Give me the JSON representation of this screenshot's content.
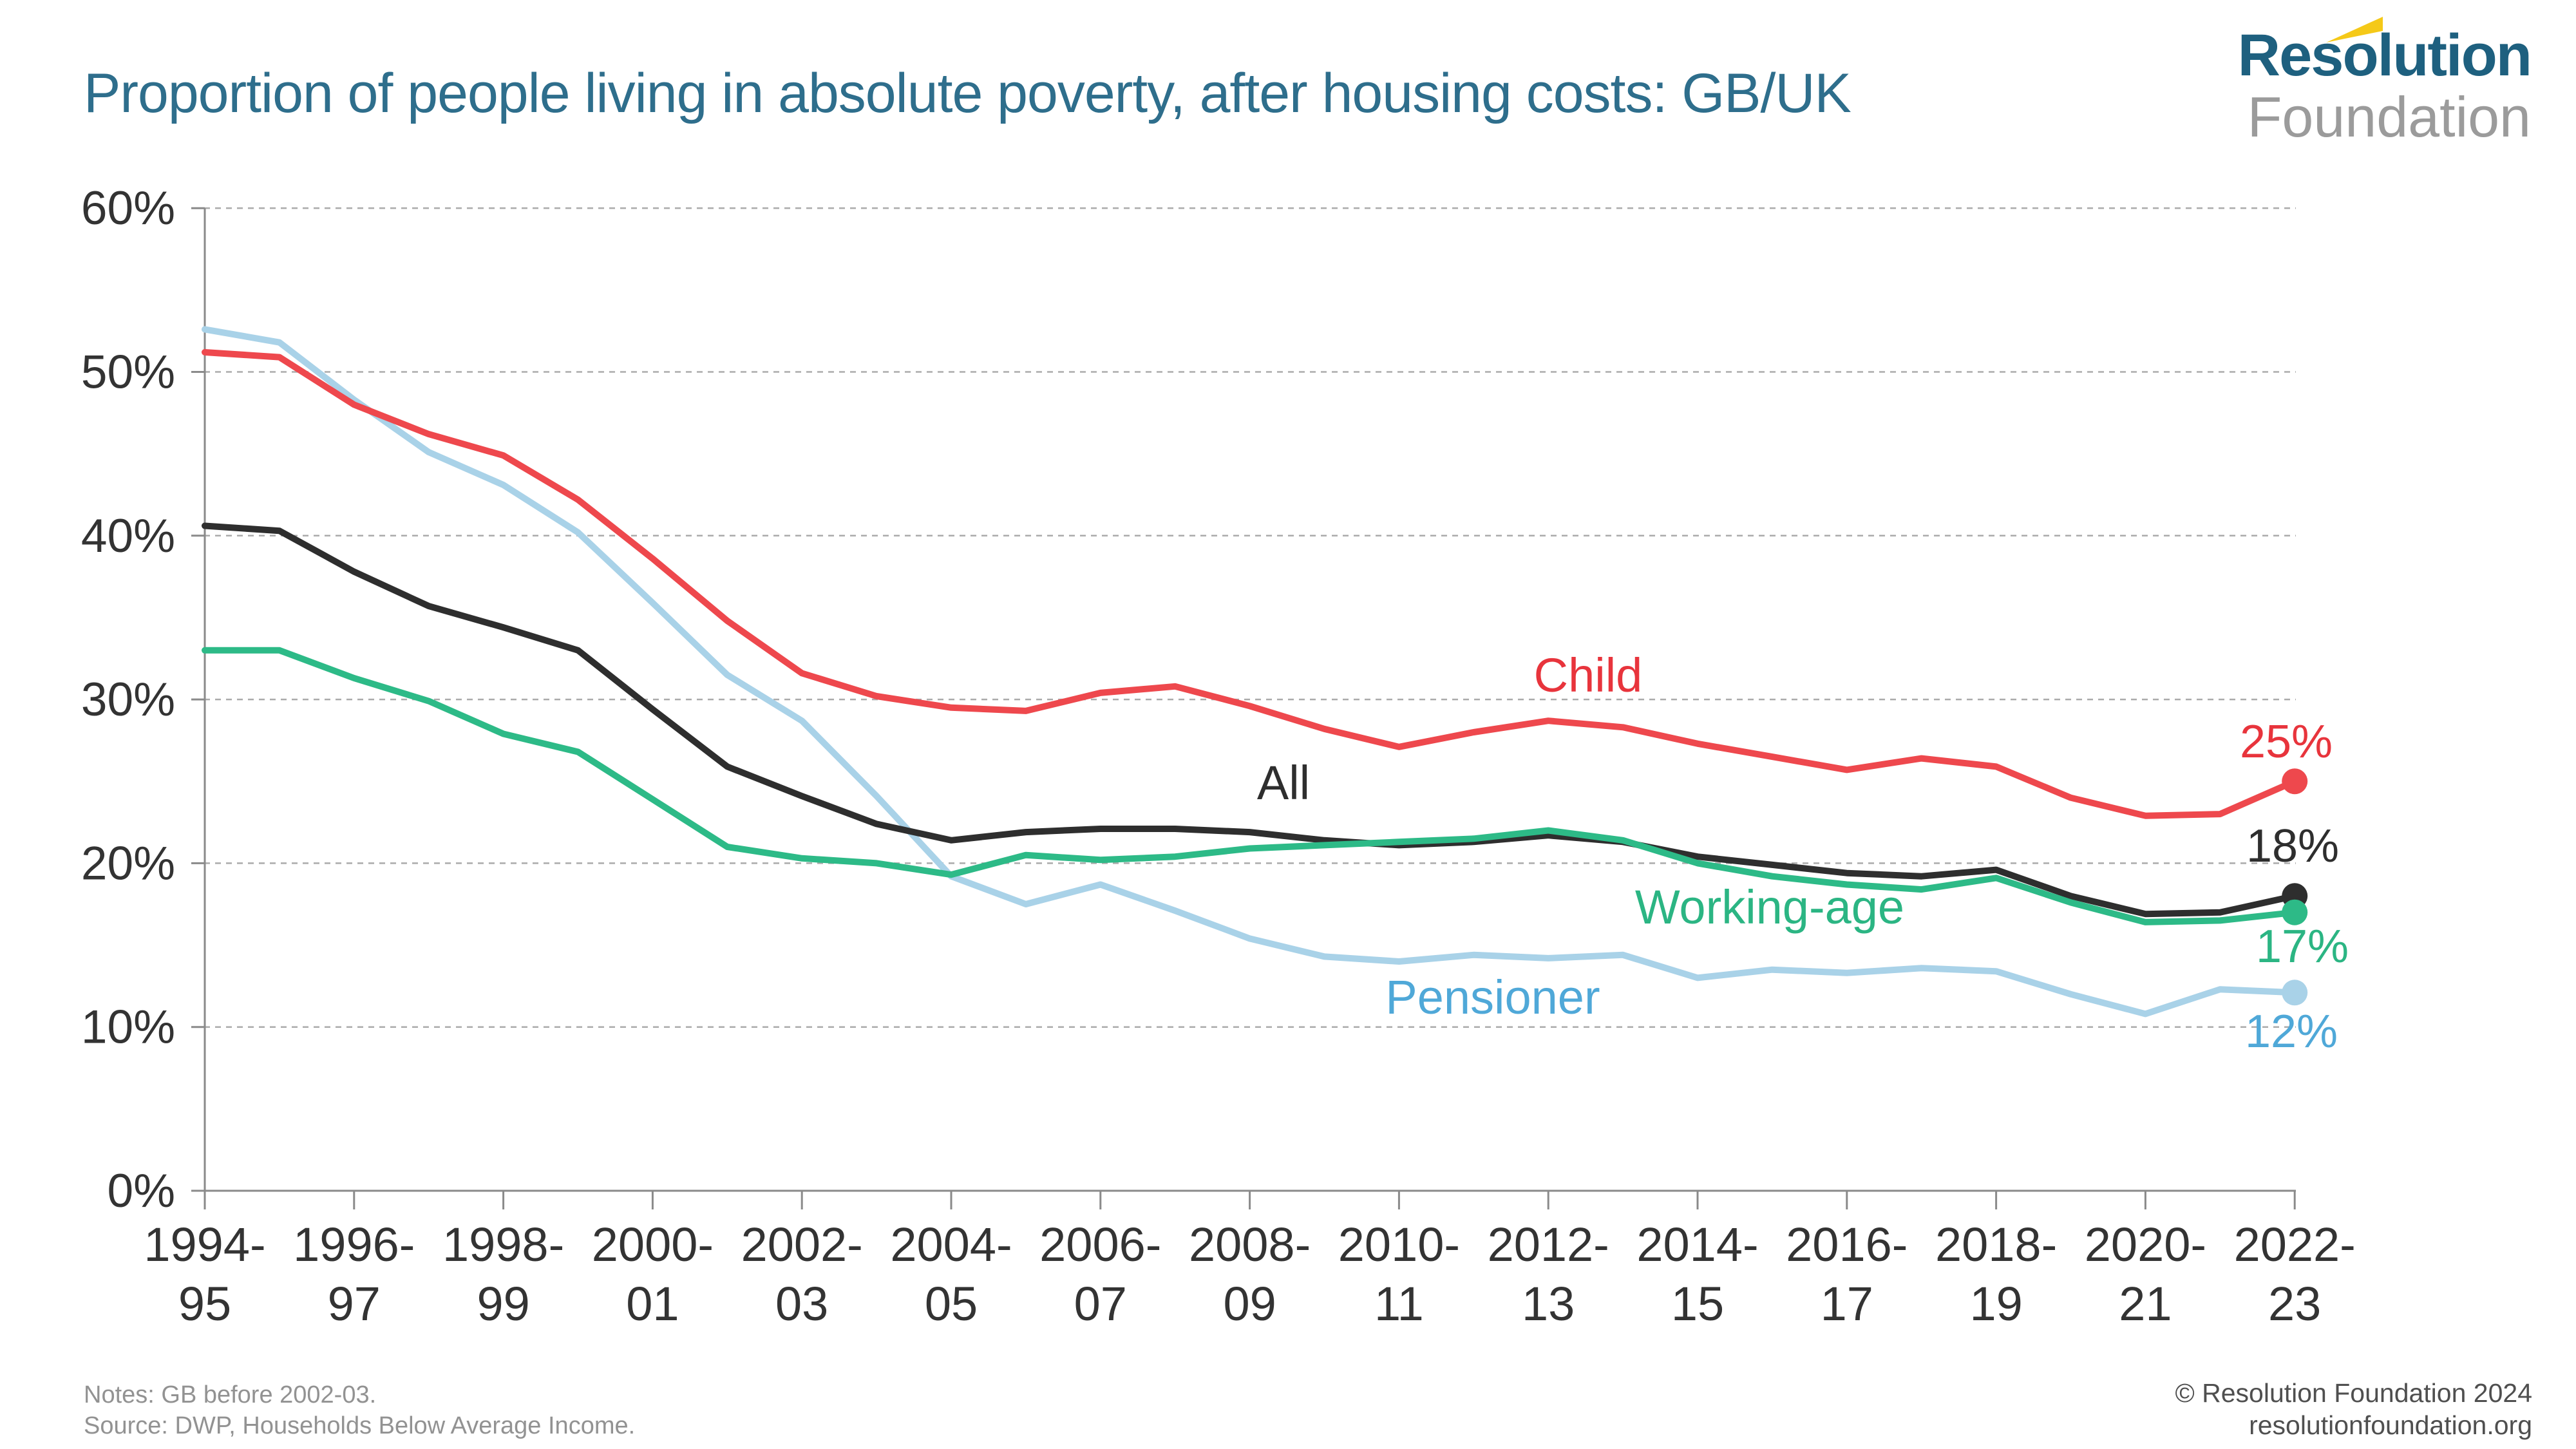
{
  "header": {
    "title": "Proportion of people living in absolute poverty, after housing costs: GB/UK",
    "logo": {
      "line1": "Resolution",
      "line2": "Foundation"
    }
  },
  "chart_data": {
    "type": "line",
    "x": [
      "1994-95",
      "1995-96",
      "1996-97",
      "1997-98",
      "1998-99",
      "1999-00",
      "2000-01",
      "2001-02",
      "2002-03",
      "2003-04",
      "2004-05",
      "2005-06",
      "2006-07",
      "2007-08",
      "2008-09",
      "2009-10",
      "2010-11",
      "2011-12",
      "2012-13",
      "2013-14",
      "2014-15",
      "2015-16",
      "2016-17",
      "2017-18",
      "2018-19",
      "2019-20",
      "2020-21",
      "2021-22",
      "2022-23"
    ],
    "x_tick_every": 2,
    "ylim": [
      0,
      60
    ],
    "ytick_step": 10,
    "ytick_labels": [
      "0%",
      "10%",
      "20%",
      "30%",
      "40%",
      "50%",
      "60%"
    ],
    "grid": "horizontal dashed",
    "legend": "inline series labels",
    "series": [
      {
        "name": "Child",
        "color": "#ee484d",
        "label_color": "#e8343c",
        "end_label": "25%",
        "values": [
          51.2,
          50.9,
          48.0,
          46.2,
          44.9,
          42.2,
          38.6,
          34.8,
          31.6,
          30.2,
          29.5,
          29.3,
          30.4,
          30.8,
          29.6,
          28.2,
          27.1,
          28.0,
          28.7,
          28.3,
          27.3,
          26.5,
          25.7,
          26.4,
          25.9,
          24.0,
          22.9,
          23.0,
          25.0
        ]
      },
      {
        "name": "All",
        "color": "#2e2e2e",
        "label_color": "#2e2e2e",
        "end_label": "18%",
        "values": [
          40.6,
          40.3,
          37.8,
          35.7,
          34.4,
          33.0,
          29.4,
          25.9,
          24.1,
          22.4,
          21.4,
          21.9,
          22.1,
          22.1,
          21.9,
          21.4,
          21.1,
          21.3,
          21.7,
          21.3,
          20.4,
          19.9,
          19.4,
          19.2,
          19.6,
          18.0,
          16.9,
          17.0,
          18.0
        ]
      },
      {
        "name": "Working-age",
        "color": "#2dba87",
        "label_color": "#2bb583",
        "end_label": "17%",
        "values": [
          33.0,
          33.0,
          31.3,
          29.9,
          27.9,
          26.8,
          23.9,
          21.0,
          20.3,
          20.0,
          19.3,
          20.5,
          20.2,
          20.4,
          20.9,
          21.1,
          21.3,
          21.5,
          22.0,
          21.4,
          20.0,
          19.2,
          18.7,
          18.4,
          19.1,
          17.6,
          16.4,
          16.5,
          17.0
        ]
      },
      {
        "name": "Pensioner",
        "color": "#a9d2e8",
        "label_color": "#4fa8d8",
        "end_label": "12%",
        "values": [
          52.6,
          51.8,
          48.3,
          45.1,
          43.1,
          40.2,
          35.9,
          31.5,
          28.7,
          24.1,
          19.2,
          17.5,
          18.7,
          17.1,
          15.4,
          14.3,
          14.0,
          14.4,
          14.2,
          14.4,
          13.0,
          13.5,
          13.3,
          13.6,
          13.4,
          12.0,
          10.8,
          12.3,
          12.1
        ]
      }
    ]
  },
  "notes": {
    "line1": "Notes: GB before 2002-03.",
    "line2": "Source: DWP, Households Below Average Income."
  },
  "footer": {
    "copyright": "© Resolution Foundation 2024",
    "website": "resolutionfoundation.org"
  }
}
